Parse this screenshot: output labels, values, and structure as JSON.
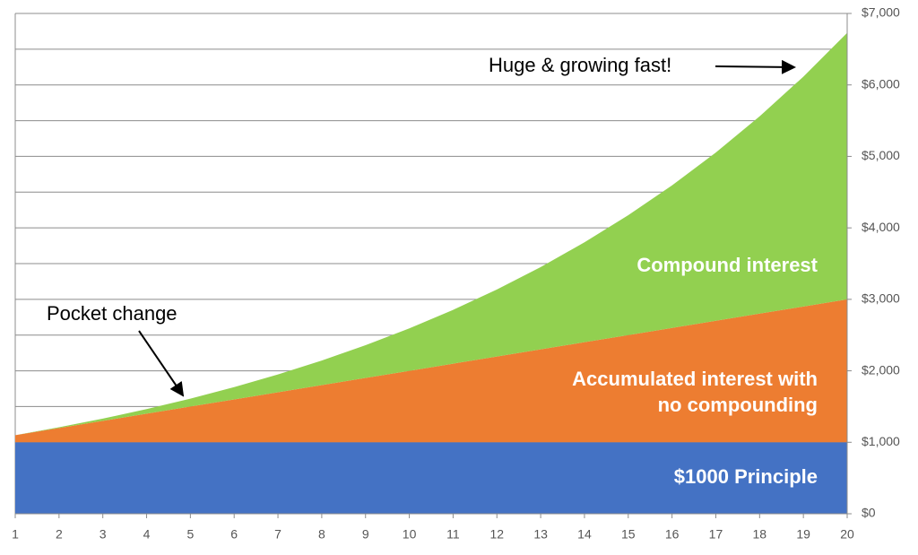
{
  "chart_data": {
    "type": "area",
    "x": [
      1,
      2,
      3,
      4,
      5,
      6,
      7,
      8,
      9,
      10,
      11,
      12,
      13,
      14,
      15,
      16,
      17,
      18,
      19,
      20
    ],
    "xlim": [
      1,
      20
    ],
    "xticks": [
      1,
      2,
      3,
      4,
      5,
      6,
      7,
      8,
      9,
      10,
      11,
      12,
      13,
      14,
      15,
      16,
      17,
      18,
      19,
      20
    ],
    "ylim": [
      0,
      7000
    ],
    "yticks": [
      {
        "value": 0,
        "label": "$0"
      },
      {
        "value": 1000,
        "label": "$1,000"
      },
      {
        "value": 2000,
        "label": "$2,000"
      },
      {
        "value": 3000,
        "label": "$3,000"
      },
      {
        "value": 4000,
        "label": "$4,000"
      },
      {
        "value": 5000,
        "label": "$5,000"
      },
      {
        "value": 6000,
        "label": "$6,000"
      },
      {
        "value": 7000,
        "label": "$7,000"
      }
    ],
    "y_minor_gridlines": [
      500,
      1500,
      2500,
      3500,
      4500,
      5500,
      6500
    ],
    "grid": true,
    "stacked": true,
    "series": [
      {
        "name": "$1000 Principle",
        "color": "#4472c4",
        "values": [
          1000,
          1000,
          1000,
          1000,
          1000,
          1000,
          1000,
          1000,
          1000,
          1000,
          1000,
          1000,
          1000,
          1000,
          1000,
          1000,
          1000,
          1000,
          1000,
          1000
        ]
      },
      {
        "name": "Accumulated interest with no compounding",
        "color": "#ed7d31",
        "values": [
          100,
          200,
          300,
          400,
          500,
          600,
          700,
          800,
          900,
          1000,
          1100,
          1200,
          1300,
          1400,
          1500,
          1600,
          1700,
          1800,
          1900,
          2000
        ]
      },
      {
        "name": "Compound interest",
        "color": "#92d050",
        "values": [
          0,
          10,
          31,
          64,
          111,
          172,
          249,
          344,
          458,
          594,
          753,
          938,
          1152,
          1398,
          1677,
          1995,
          2354,
          2760,
          3216,
          3728
        ]
      }
    ],
    "annotations": [
      "Huge & growing fast!",
      "Pocket change"
    ]
  }
}
